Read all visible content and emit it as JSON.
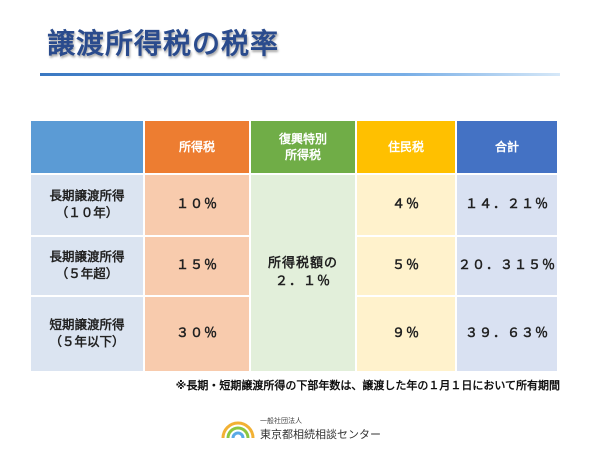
{
  "title": "譲渡所得税の税率",
  "table": {
    "headers": {
      "income_tax": "所得税",
      "reconstruction_tax_line1": "復興特別",
      "reconstruction_tax_line2": "所得税",
      "resident_tax": "住民税",
      "total": "合計"
    },
    "rows": [
      {
        "label_line1": "長期譲渡所得",
        "label_line2": "（１０年）",
        "income_tax": "１０％",
        "resident_tax": "４％",
        "total": "１４．２１％"
      },
      {
        "label_line1": "長期譲渡所得",
        "label_line2": "（５年超）",
        "income_tax": "１５％",
        "resident_tax": "５％",
        "total": "２０．３１５％"
      },
      {
        "label_line1": "短期譲渡所得",
        "label_line2": "（５年以下）",
        "income_tax": "３０％",
        "resident_tax": "９％",
        "total": "３９．６３％"
      }
    ],
    "reconstruction_value_line1": "所得税額の",
    "reconstruction_value_line2": "２．１％"
  },
  "footnote": "※長期・短期譲渡所得の下部年数は、譲渡した年の１月１日において所有期間",
  "logo": {
    "org_type": "一般社団法人",
    "org_name": "東京都相続相談センター"
  },
  "colors": {
    "title": "#2a4b8d",
    "header_label_col": "#5b9bd5",
    "header_income_tax": "#ed7d31",
    "header_reconstruction": "#70ad47",
    "header_resident": "#ffc000",
    "header_total": "#4472c4",
    "body_income_tax": "#f8cbad",
    "body_reconstruction": "#e2efda",
    "body_resident": "#fff2cc",
    "body_total": "#d9e1f2"
  }
}
